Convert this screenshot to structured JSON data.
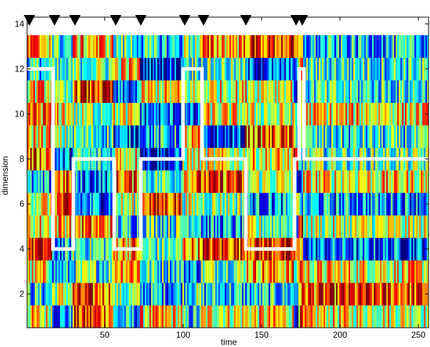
{
  "chart_data": {
    "type": "heatmap",
    "title": "",
    "xlabel": "time",
    "ylabel": "dimension",
    "xlim": [
      0.5,
      256.5
    ],
    "ylim": [
      0.5,
      14.3
    ],
    "x_ticks": [
      50,
      100,
      150,
      200,
      250
    ],
    "y_ticks": [
      2,
      4,
      6,
      8,
      10,
      12,
      14
    ],
    "num_time_steps": 256,
    "num_dimensions": 13,
    "colormap": "jet",
    "grid": false,
    "legend": "none",
    "segment_state_line": {
      "color": "#ffffff",
      "points": [
        [
          0.5,
          12
        ],
        [
          17,
          12
        ],
        [
          17,
          4
        ],
        [
          30,
          4
        ],
        [
          30,
          8
        ],
        [
          56,
          8
        ],
        [
          56,
          4
        ],
        [
          73,
          4
        ],
        [
          73,
          8
        ],
        [
          100,
          8
        ],
        [
          100,
          12
        ],
        [
          112,
          12
        ],
        [
          112,
          8
        ],
        [
          140,
          8
        ],
        [
          140,
          4
        ],
        [
          171,
          4
        ],
        [
          171,
          8
        ],
        [
          174,
          8
        ],
        [
          174,
          12
        ],
        [
          177,
          12
        ],
        [
          177,
          8
        ],
        [
          256.5,
          8
        ]
      ]
    },
    "change_point_markers": [
      2,
      18,
      31,
      57,
      73,
      101,
      113,
      140,
      172,
      176
    ]
  }
}
